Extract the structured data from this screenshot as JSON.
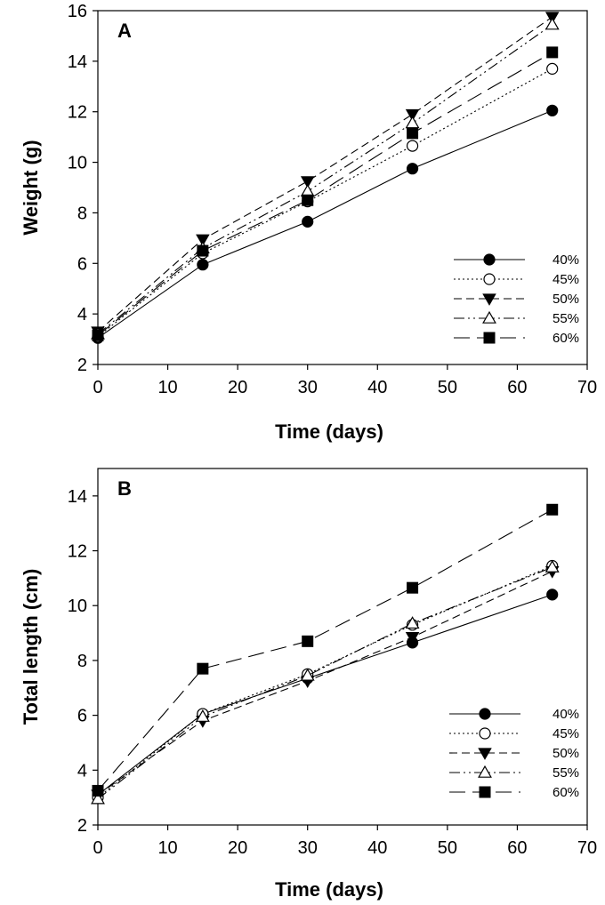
{
  "chart_data": [
    {
      "type": "line",
      "panel_label": "A",
      "xlabel": "Time (days)",
      "ylabel": "Weight (g)",
      "xlim": [
        0,
        70
      ],
      "ylim": [
        2,
        16
      ],
      "xticks": [
        0,
        10,
        20,
        30,
        40,
        50,
        60,
        70
      ],
      "yticks": [
        2,
        4,
        6,
        8,
        10,
        12,
        14,
        16
      ],
      "grid": false,
      "legend_position": "bottom-right",
      "x": [
        0,
        15,
        30,
        45,
        65
      ],
      "series": [
        {
          "name": "40%",
          "marker": "circle-filled",
          "dash": "solid",
          "values": [
            3.05,
            5.95,
            7.65,
            9.75,
            12.05
          ]
        },
        {
          "name": "45%",
          "marker": "circle-open",
          "dash": "dotted",
          "values": [
            3.1,
            6.4,
            8.45,
            10.65,
            13.7
          ]
        },
        {
          "name": "50%",
          "marker": "triangle-down-filled",
          "dash": "dashed",
          "values": [
            3.3,
            6.95,
            9.25,
            11.9,
            15.75
          ]
        },
        {
          "name": "55%",
          "marker": "triangle-up-open",
          "dash": "dashdotdot",
          "values": [
            3.2,
            6.6,
            8.85,
            11.55,
            15.45
          ]
        },
        {
          "name": "60%",
          "marker": "square-filled",
          "dash": "longdash",
          "values": [
            3.15,
            6.5,
            8.5,
            11.15,
            14.35
          ]
        }
      ]
    },
    {
      "type": "line",
      "panel_label": "B",
      "xlabel": "Time (days)",
      "ylabel": "Total length (cm)",
      "xlim": [
        0,
        70
      ],
      "ylim": [
        2,
        15
      ],
      "xticks": [
        0,
        10,
        20,
        30,
        40,
        50,
        60,
        70
      ],
      "yticks": [
        2,
        4,
        6,
        8,
        10,
        12,
        14
      ],
      "grid": false,
      "legend_position": "bottom-right",
      "x": [
        0,
        15,
        30,
        45,
        65
      ],
      "series": [
        {
          "name": "40%",
          "marker": "circle-filled",
          "dash": "solid",
          "values": [
            3.1,
            6.05,
            7.35,
            8.65,
            10.4
          ]
        },
        {
          "name": "45%",
          "marker": "circle-open",
          "dash": "dotted",
          "values": [
            3.0,
            6.05,
            7.5,
            9.3,
            11.45
          ]
        },
        {
          "name": "50%",
          "marker": "triangle-down-filled",
          "dash": "dashed",
          "values": [
            3.1,
            5.8,
            7.25,
            8.85,
            11.25
          ]
        },
        {
          "name": "55%",
          "marker": "triangle-up-open",
          "dash": "dashdotdot",
          "values": [
            2.95,
            5.95,
            7.45,
            9.35,
            11.4
          ]
        },
        {
          "name": "60%",
          "marker": "square-filled",
          "dash": "longdash",
          "values": [
            3.25,
            7.7,
            8.7,
            10.65,
            13.5
          ]
        }
      ]
    }
  ]
}
